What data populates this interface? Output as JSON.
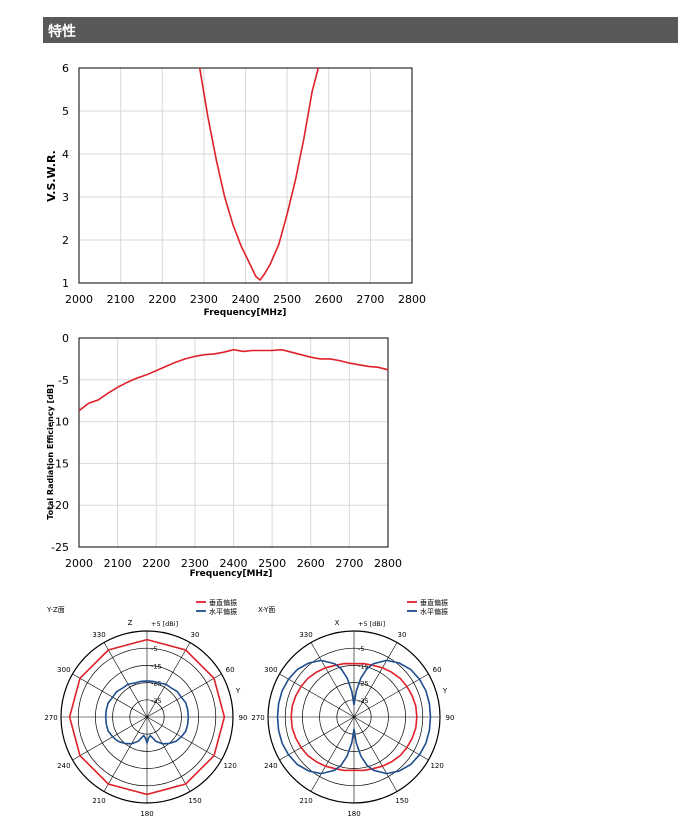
{
  "header": {
    "title": "特性"
  },
  "colors": {
    "header_bg": "#595959",
    "vertical": "#e0202a",
    "horizontal": "#1f4e8c",
    "grid": "#d9d9d9"
  },
  "chart_data": [
    {
      "type": "line",
      "title": "",
      "xlabel": "Frequency[MHz]",
      "ylabel": "V.S.W.R.",
      "xlim": [
        2000,
        2800
      ],
      "ylim": [
        1,
        6
      ],
      "xticks": [
        "2000",
        "2100",
        "2200",
        "2300",
        "2400",
        "2500",
        "2600",
        "2700",
        "2800"
      ],
      "yticks": [
        "1",
        "2",
        "3",
        "4",
        "5",
        "6"
      ],
      "grid": true,
      "series": [
        {
          "color": "#e0202a",
          "x": [
            2290,
            2310,
            2330,
            2350,
            2370,
            2390,
            2410,
            2425,
            2435,
            2445,
            2460,
            2480,
            2500,
            2520,
            2540,
            2560,
            2575
          ],
          "y": [
            6.0,
            4.85,
            3.85,
            3.0,
            2.35,
            1.85,
            1.45,
            1.15,
            1.07,
            1.2,
            1.45,
            1.9,
            2.6,
            3.4,
            4.35,
            5.45,
            6.0
          ]
        }
      ]
    },
    {
      "type": "line",
      "title": "",
      "xlabel": "Frequency[MHz]",
      "ylabel": "Total Radiation Efficiency [dB]",
      "xlim": [
        2000,
        2800
      ],
      "ylim": [
        -25,
        0
      ],
      "xticks": [
        "2000",
        "2100",
        "2200",
        "2300",
        "2400",
        "2500",
        "2600",
        "2700",
        "2800"
      ],
      "yticks": [
        "0",
        "-5",
        "-10",
        "-15",
        "-20",
        "-25"
      ],
      "grid": true,
      "series": [
        {
          "color": "#e0202a",
          "x": [
            2000,
            2025,
            2050,
            2075,
            2100,
            2125,
            2150,
            2175,
            2200,
            2225,
            2250,
            2275,
            2300,
            2325,
            2350,
            2375,
            2400,
            2425,
            2450,
            2475,
            2500,
            2525,
            2550,
            2575,
            2600,
            2625,
            2650,
            2675,
            2700,
            2725,
            2750,
            2775,
            2800
          ],
          "y": [
            -8.7,
            -7.8,
            -7.4,
            -6.6,
            -5.9,
            -5.3,
            -4.8,
            -4.4,
            -3.9,
            -3.4,
            -2.9,
            -2.5,
            -2.2,
            -2.0,
            -1.9,
            -1.7,
            -1.4,
            -1.6,
            -1.5,
            -1.5,
            -1.5,
            -1.4,
            -1.7,
            -2.0,
            -2.3,
            -2.5,
            -2.5,
            -2.7,
            -3.0,
            -3.2,
            -3.4,
            -3.5,
            -3.8
          ]
        }
      ]
    },
    {
      "type": "polar",
      "plane_label": "Y-Z面",
      "unit_label": "+5 [dBi]",
      "top_axis": "Z",
      "side_axis": "Y",
      "ring_labels": [
        "-5",
        "-15",
        "-25",
        "-35"
      ],
      "angle_labels": [
        "330",
        "30",
        "300",
        "60",
        "270",
        "90",
        "240",
        "120",
        "210",
        "150",
        "180"
      ],
      "rlim": [
        -45,
        5
      ],
      "legend": [
        "垂直偏振",
        "水平偏振"
      ],
      "series": [
        {
          "name": "垂直偏振",
          "color": "#e0202a",
          "angles": [
            0,
            30,
            60,
            90,
            120,
            150,
            180,
            210,
            240,
            270,
            300,
            330,
            360
          ],
          "values": [
            0,
            0,
            0,
            0,
            0,
            0,
            0,
            0,
            0,
            0,
            0,
            0,
            0
          ]
        },
        {
          "name": "水平偏振",
          "color": "#1f4e8c",
          "angles": [
            0,
            10,
            20,
            30,
            40,
            50,
            60,
            70,
            80,
            90,
            100,
            110,
            120,
            130,
            140,
            150,
            160,
            170,
            175,
            180,
            185,
            190,
            200,
            210,
            220,
            230,
            240,
            250,
            260,
            270,
            280,
            290,
            300,
            310,
            320,
            330,
            340,
            350,
            360
          ],
          "values": [
            -24,
            -24,
            -24,
            -23,
            -23,
            -22,
            -22,
            -21,
            -21,
            -21,
            -21,
            -21,
            -22,
            -23,
            -25,
            -27,
            -30,
            -34,
            -33,
            -30,
            -33,
            -34,
            -30,
            -27,
            -25,
            -23,
            -22,
            -21,
            -21,
            -21,
            -21,
            -21,
            -22,
            -22,
            -23,
            -23,
            -24,
            -24,
            -24
          ]
        }
      ]
    },
    {
      "type": "polar",
      "plane_label": "X-Y面",
      "unit_label": "+5 [dBi]",
      "top_axis": "X",
      "side_axis": "Y",
      "ring_labels": [
        "-5",
        "-15",
        "-25",
        "-35"
      ],
      "angle_labels": [
        "330",
        "30",
        "300",
        "60",
        "270",
        "90",
        "240",
        "120",
        "210",
        "150",
        "180"
      ],
      "rlim": [
        -45,
        5
      ],
      "legend": [
        "垂直偏振",
        "水平偏振"
      ],
      "series": [
        {
          "name": "垂直偏振",
          "color": "#e0202a",
          "angles": [
            0,
            10,
            20,
            30,
            40,
            50,
            60,
            70,
            80,
            90,
            100,
            110,
            120,
            130,
            140,
            150,
            160,
            170,
            180,
            190,
            200,
            210,
            220,
            230,
            240,
            250,
            260,
            270,
            280,
            290,
            300,
            310,
            320,
            330,
            340,
            350,
            360
          ],
          "values": [
            -14,
            -13.5,
            -13,
            -12,
            -11,
            -10,
            -9.5,
            -9,
            -8.5,
            -8.5,
            -8.5,
            -9,
            -9.5,
            -10,
            -11,
            -12,
            -13,
            -13.5,
            -14,
            -13.5,
            -13,
            -12,
            -11,
            -10,
            -9.5,
            -9,
            -8.5,
            -8.5,
            -8.5,
            -9,
            -9.5,
            -10,
            -11,
            -12,
            -13,
            -13.5,
            -14
          ]
        },
        {
          "name": "水平偏振",
          "color": "#1f4e8c",
          "angles": [
            0,
            5,
            10,
            15,
            20,
            30,
            40,
            50,
            60,
            70,
            80,
            90,
            100,
            110,
            120,
            130,
            140,
            150,
            160,
            165,
            170,
            175,
            180,
            185,
            190,
            195,
            200,
            210,
            220,
            230,
            240,
            250,
            260,
            270,
            280,
            290,
            300,
            310,
            320,
            330,
            340,
            345,
            350,
            355,
            360
          ],
          "values": [
            -38,
            -30,
            -22,
            -16,
            -12,
            -7,
            -4,
            -2,
            -1,
            -0.5,
            -0.5,
            -0.5,
            -0.5,
            -0.5,
            -1,
            -2,
            -4,
            -7,
            -12,
            -16,
            -22,
            -30,
            -38,
            -30,
            -22,
            -16,
            -12,
            -7,
            -4,
            -2,
            -1,
            -0.5,
            -0.5,
            -0.5,
            -0.5,
            -0.5,
            -1,
            -2,
            -4,
            -7,
            -12,
            -16,
            -22,
            -30,
            -38
          ]
        }
      ]
    }
  ]
}
